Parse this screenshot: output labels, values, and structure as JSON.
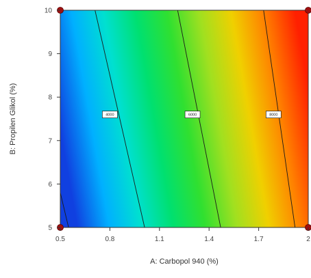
{
  "chart_data": {
    "type": "contour",
    "xlabel": "A: Carbopol 940 (%)",
    "ylabel": "B: Propilen Glikol (%)",
    "xlim": [
      0.5,
      2.0
    ],
    "ylim": [
      5,
      10
    ],
    "x_ticks": [
      "0.5",
      "0.8",
      "1.1",
      "1.4",
      "1.7",
      "2"
    ],
    "y_ticks": [
      "5",
      "6",
      "7",
      "8",
      "9",
      "10"
    ],
    "contours": [
      {
        "label": "4000",
        "points": [
          [
            0.71,
            10
          ],
          [
            1.01,
            5
          ]
        ],
        "label_at": [
          0.8,
          7.6
        ]
      },
      {
        "label": "6000",
        "points": [
          [
            1.21,
            10
          ],
          [
            1.47,
            5
          ]
        ],
        "label_at": [
          1.3,
          7.6
        ]
      },
      {
        "label": "8000",
        "points": [
          [
            1.73,
            10
          ],
          [
            1.92,
            5
          ]
        ],
        "label_at": [
          1.79,
          7.6
        ]
      },
      {
        "label": "",
        "points": [
          [
            0.5,
            5.8
          ],
          [
            0.55,
            5
          ]
        ]
      }
    ],
    "color_gradient": [
      "#1040e0",
      "#00b0ff",
      "#00e0d0",
      "#00e070",
      "#30e030",
      "#a0e020",
      "#f0d000",
      "#ff8000",
      "#ff2000"
    ],
    "design_points": [
      [
        0.5,
        10
      ],
      [
        2.0,
        10
      ],
      [
        0.5,
        5
      ],
      [
        2.0,
        5
      ]
    ]
  }
}
